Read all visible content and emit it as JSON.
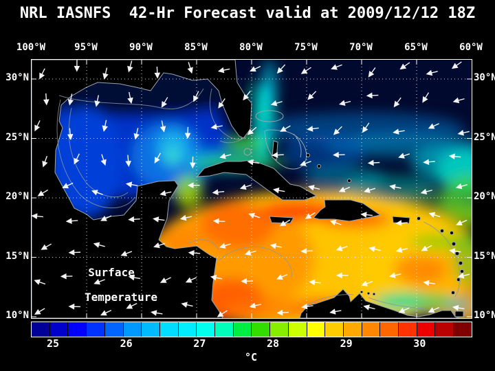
{
  "title": "NRL IASNFS  42-Hr Forecast valid at 2009/12/12 18Z",
  "map": {
    "overlay_label_line1": "Surface",
    "overlay_label_line2": "Temperature",
    "lon_labels": [
      "100°W",
      "95°W",
      "90°W",
      "85°W",
      "80°W",
      "75°W",
      "70°W",
      "65°W",
      "60°W"
    ],
    "lat_labels": [
      "30°N",
      "25°N",
      "20°N",
      "15°N",
      "10°N"
    ],
    "grid": {
      "lon_spacing_deg": 5,
      "lat_spacing_deg": 5
    },
    "wind_vectors": {
      "color": "#ffffff",
      "cols": 15,
      "rows": 9
    }
  },
  "colorbar": {
    "unit": "°C",
    "ticks": [
      25,
      26,
      27,
      28,
      29,
      30
    ],
    "value_range": [
      24.7,
      30.7
    ],
    "border_color": "#ffffff",
    "segment_colors": [
      "#000099",
      "#0000cc",
      "#0000ff",
      "#0033ff",
      "#0066ff",
      "#0099ff",
      "#00bbff",
      "#00ddff",
      "#00eeff",
      "#00ffee",
      "#00ffbb",
      "#00ee44",
      "#33dd00",
      "#88ee00",
      "#ccff00",
      "#ffff00",
      "#ffcc00",
      "#ffaa00",
      "#ff8800",
      "#ff6600",
      "#ff3300",
      "#ee0000",
      "#bb0000",
      "#800000"
    ]
  },
  "chart_data": {
    "type": "heatmap",
    "title": "NRL IASNFS  42-Hr Forecast valid at 2009/12/12 18Z",
    "field_label": "Surface Temperature",
    "unit": "°C",
    "x_ticks": [
      "100°W",
      "95°W",
      "90°W",
      "85°W",
      "80°W",
      "75°W",
      "70°W",
      "65°W",
      "60°W"
    ],
    "y_ticks": [
      "30°N",
      "25°N",
      "20°N",
      "15°N",
      "10°N"
    ],
    "colorbar_tick_values": [
      25,
      26,
      27,
      28,
      29,
      30
    ],
    "colorbar_range_estimate": [
      24.7,
      30.7
    ],
    "legend_position": "bottom",
    "overlay": "surface wind vectors (white arrows)"
  }
}
